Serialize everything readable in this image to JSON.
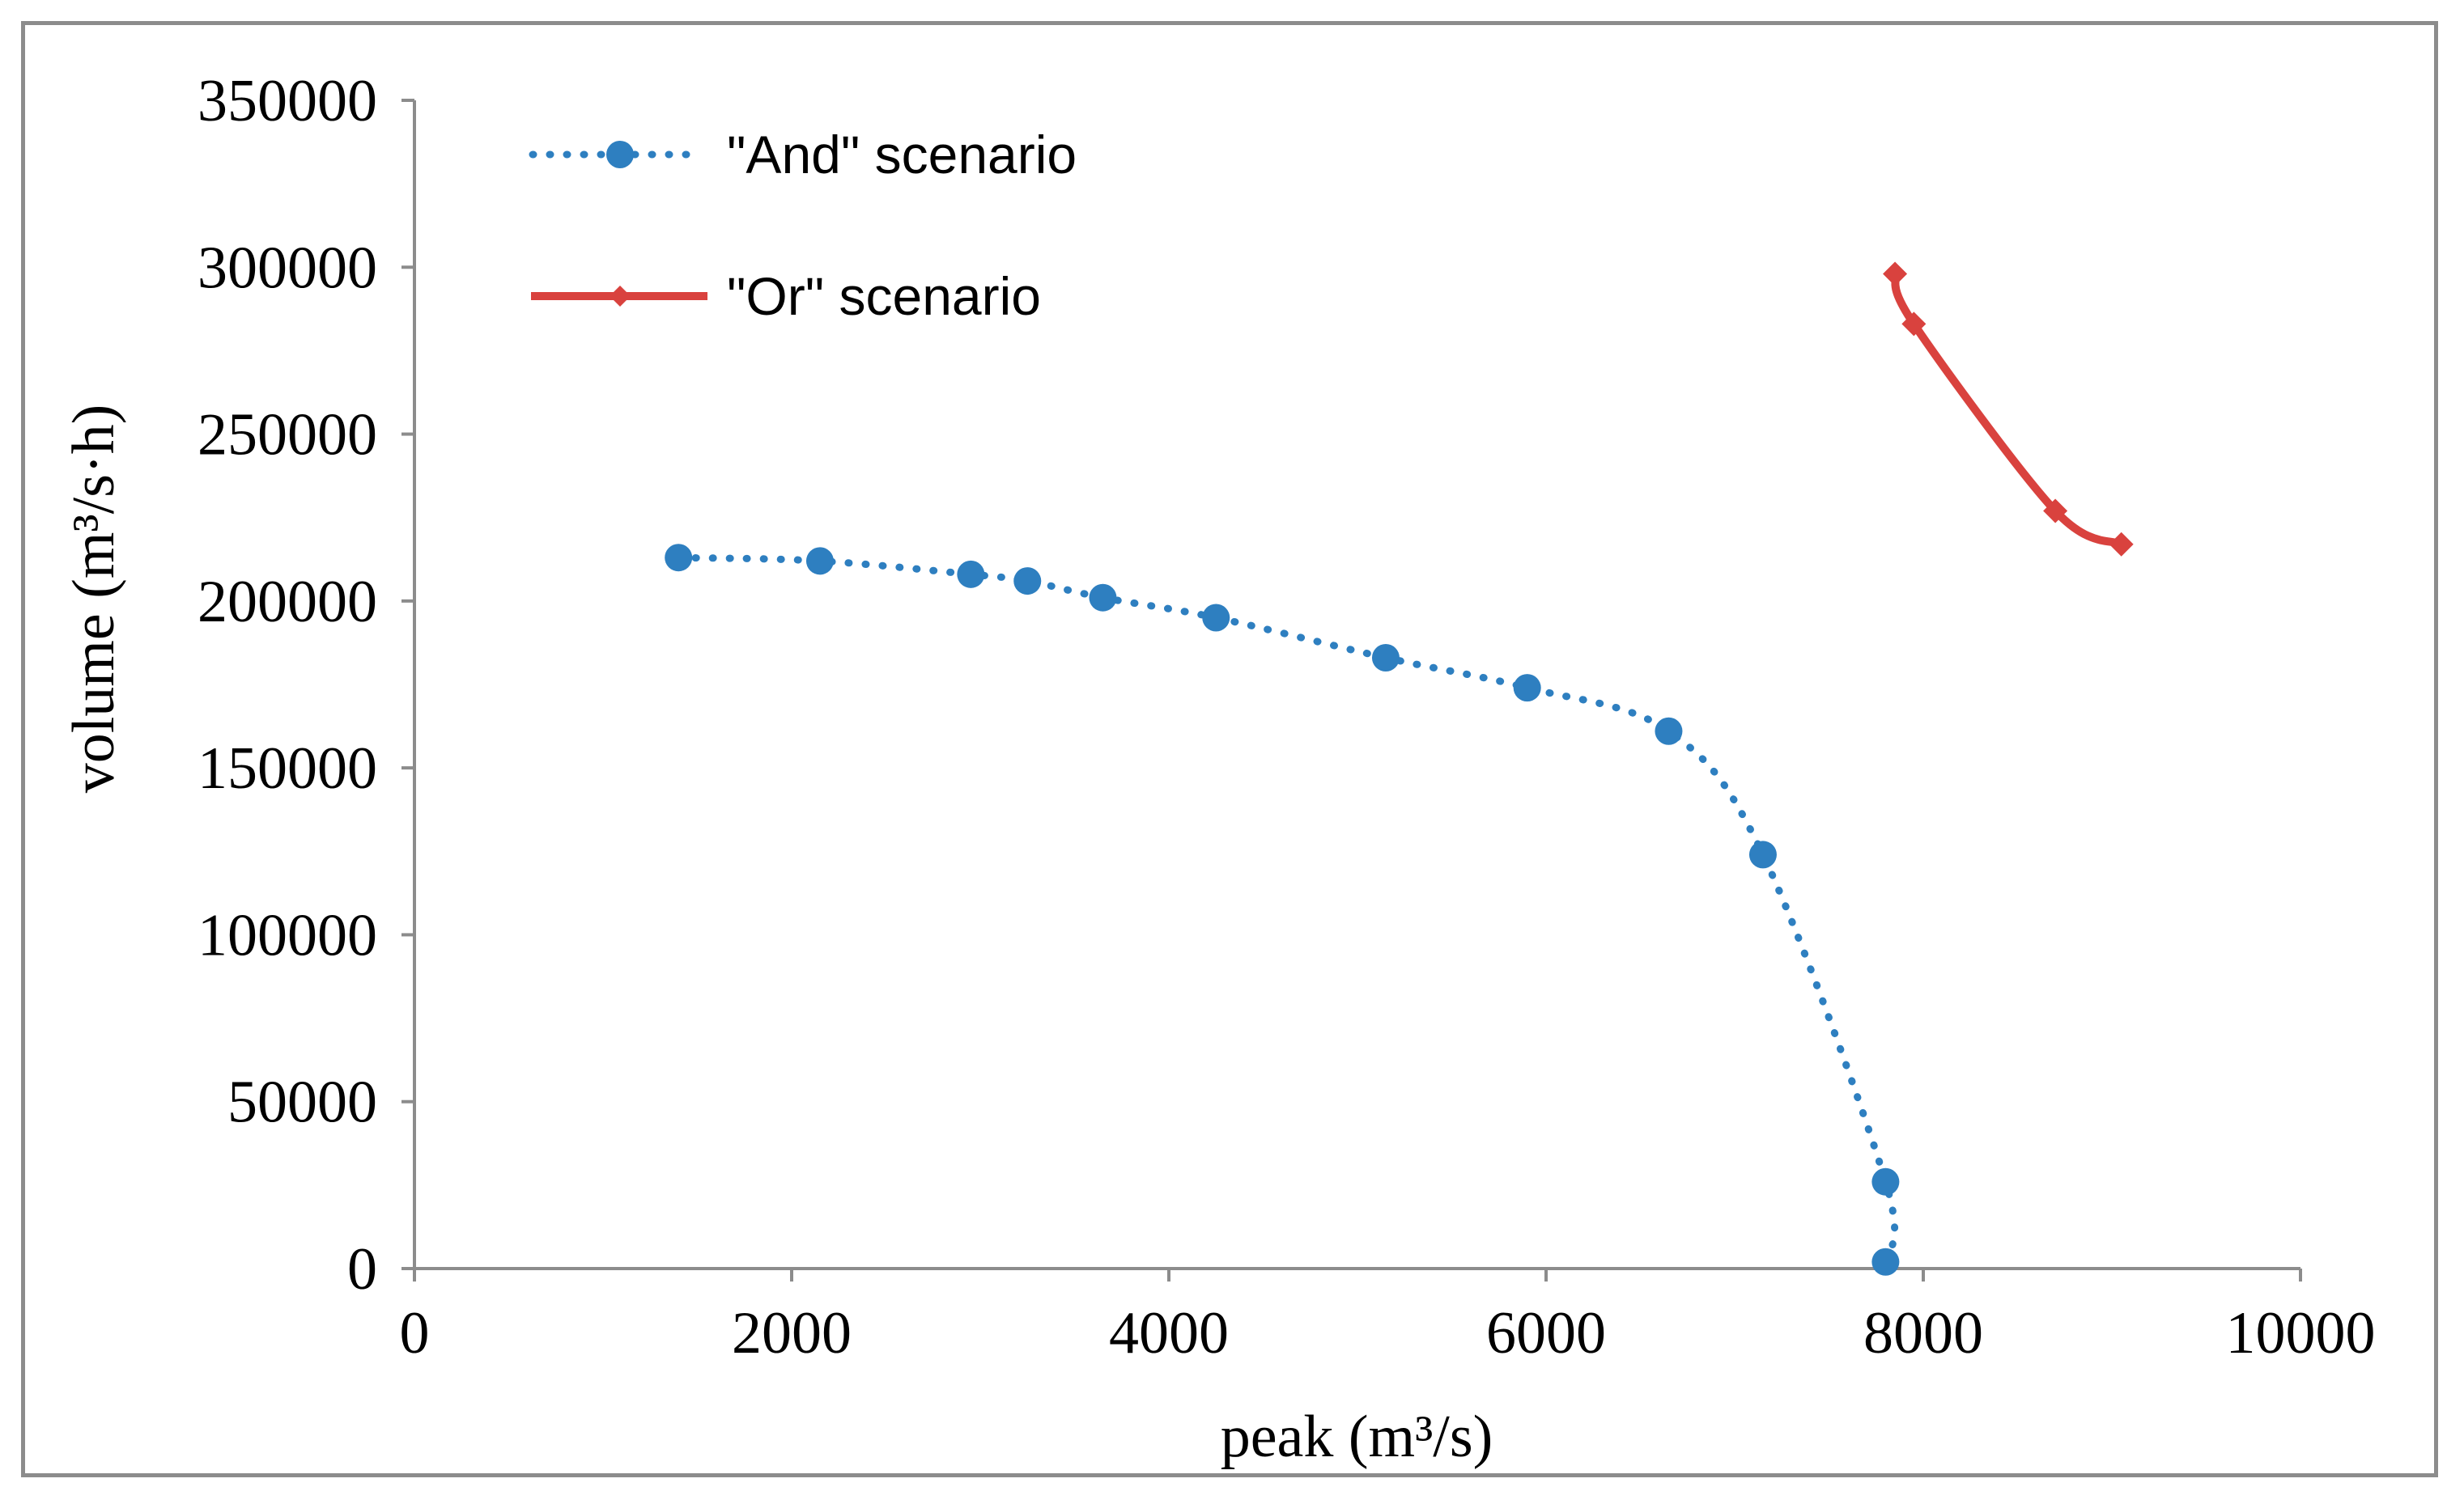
{
  "chart_data": {
    "type": "line",
    "title": "",
    "xlabel": "peak (m³/s)",
    "ylabel": "volume (m³/s·h)",
    "xlim": [
      0,
      10000
    ],
    "ylim": [
      0,
      350000
    ],
    "x_ticks": [
      0,
      2000,
      4000,
      6000,
      8000,
      10000
    ],
    "y_ticks": [
      0,
      50000,
      100000,
      150000,
      200000,
      250000,
      300000,
      350000
    ],
    "x_tick_labels": [
      "0",
      "2000",
      "4000",
      "6000",
      "8000",
      "10000"
    ],
    "y_tick_labels": [
      "0",
      "50000",
      "100000",
      "150000",
      "200000",
      "250000",
      "300000",
      "350000"
    ],
    "grid": false,
    "legend_position": "top-left",
    "series": [
      {
        "name": "\"And\" scenario",
        "color": "#2e7fc0",
        "line_style": "dotted",
        "marker": "circle",
        "x": [
          1400,
          2150,
          2950,
          3250,
          3650,
          4250,
          5150,
          5900,
          6650,
          7150,
          7800,
          7800
        ],
        "y": [
          213000,
          212000,
          208000,
          206000,
          201000,
          195000,
          183000,
          174000,
          161000,
          124000,
          26000,
          2000
        ]
      },
      {
        "name": "\"Or\" scenario",
        "color": "#d9423e",
        "line_style": "solid",
        "marker": "diamond",
        "x": [
          7850,
          7950,
          8700,
          9050
        ],
        "y": [
          298000,
          283000,
          227000,
          217000
        ]
      }
    ]
  }
}
